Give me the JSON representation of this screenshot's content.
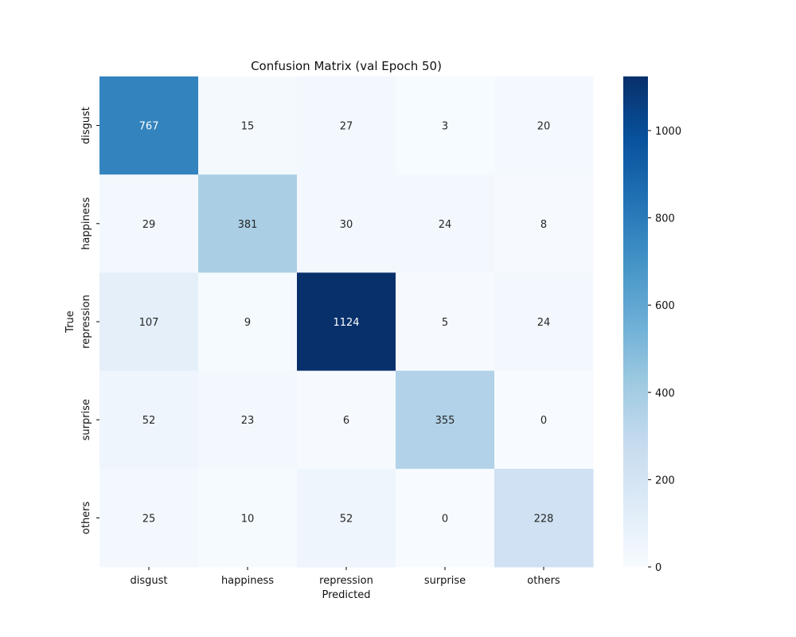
{
  "chart_data": {
    "type": "heatmap",
    "title": "Confusion Matrix (val Epoch 50)",
    "xlabel": "Predicted",
    "ylabel": "True",
    "x_categories": [
      "disgust",
      "happiness",
      "repression",
      "surprise",
      "others"
    ],
    "y_categories": [
      "disgust",
      "happiness",
      "repression",
      "surprise",
      "others"
    ],
    "matrix": [
      [
        767,
        15,
        27,
        3,
        20
      ],
      [
        29,
        381,
        30,
        24,
        8
      ],
      [
        107,
        9,
        1124,
        5,
        24
      ],
      [
        52,
        23,
        6,
        355,
        0
      ],
      [
        25,
        10,
        52,
        0,
        228
      ]
    ],
    "colorbar": {
      "min": 0,
      "max": 1124,
      "ticks": [
        0,
        200,
        400,
        600,
        800,
        1000
      ],
      "colormap": "Blues"
    },
    "colors": {
      "low": "#f7fbff",
      "high": "#08306b"
    }
  }
}
